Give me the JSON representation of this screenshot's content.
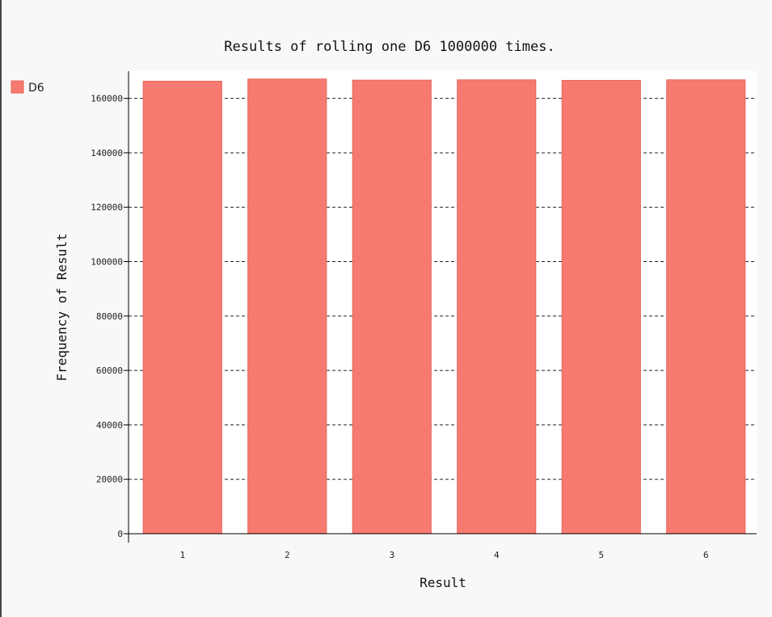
{
  "colors": {
    "bar_fill": "#f77a70",
    "bar_stroke": "#e8625a",
    "plot_bg": "#ffffff",
    "page_bg": "#f8f8f8",
    "grid": "#222222",
    "axis": "#000000"
  },
  "chart_data": {
    "type": "bar",
    "title": "Results of rolling one D6 1000000 times.",
    "xlabel": "Result",
    "ylabel": "Frequency of Result",
    "categories": [
      "1",
      "2",
      "3",
      "4",
      "5",
      "6"
    ],
    "series": [
      {
        "name": "D6",
        "values": [
          166300,
          167100,
          166700,
          166800,
          166600,
          166800
        ]
      }
    ],
    "ylim": [
      0,
      170000
    ],
    "yticks": [
      0,
      20000,
      40000,
      60000,
      80000,
      100000,
      120000,
      140000,
      160000
    ],
    "ytick_labels": [
      "0",
      "20000",
      "40000",
      "60000",
      "80000",
      "100000",
      "120000",
      "140000",
      "160000"
    ],
    "grid": true,
    "grid_style": "dashed",
    "legend": {
      "position": "top-left",
      "entries": [
        "D6"
      ]
    }
  }
}
